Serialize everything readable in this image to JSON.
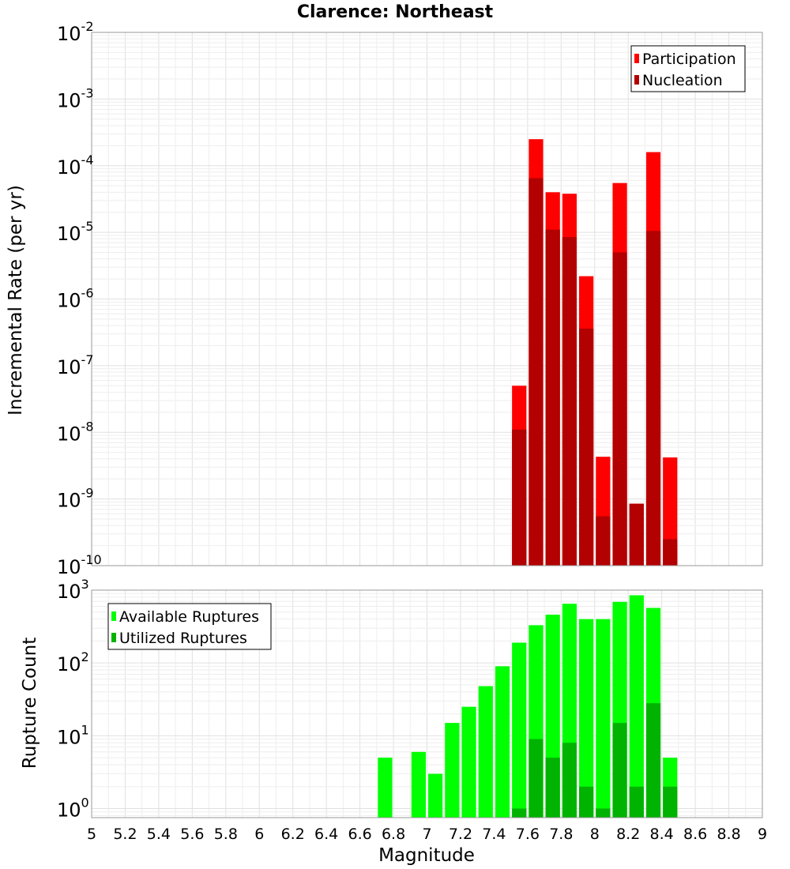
{
  "chart_data": [
    {
      "type": "bar",
      "title": "Clarence: Northeast",
      "xlabel": "",
      "ylabel": "Incremental Rate (per yr)",
      "yscale": "log",
      "xlim": [
        5,
        9
      ],
      "ylim": [
        1e-10,
        0.01
      ],
      "ytick_exponents": [
        -2,
        -3,
        -4,
        -5,
        -6,
        -7,
        -8,
        -9,
        -10
      ],
      "grid": true,
      "legend": "top-right",
      "bar_width": 0.1,
      "x": [
        7.55,
        7.65,
        7.75,
        7.85,
        7.95,
        8.05,
        8.15,
        8.25,
        8.35,
        8.45
      ],
      "series": [
        {
          "name": "Participation",
          "color": "#ff0000",
          "values": [
            5e-08,
            0.00025,
            4e-05,
            3.8e-05,
            2.2e-06,
            4.3e-09,
            5.5e-05,
            8.5e-10,
            0.00016,
            4.2e-09
          ]
        },
        {
          "name": "Nucleation",
          "color": "#b30000",
          "values": [
            1.1e-08,
            6.5e-05,
            1.1e-05,
            8.5e-06,
            3.6e-07,
            5.5e-10,
            5e-06,
            8.5e-10,
            1.05e-05,
            2.5e-10
          ]
        }
      ]
    },
    {
      "type": "bar",
      "title": "",
      "xlabel": "Magnitude",
      "ylabel": "Rupture Count",
      "yscale": "log",
      "xlim": [
        5,
        9
      ],
      "ylim": [
        0.75,
        1000
      ],
      "ytick_exponents": [
        3,
        2,
        1,
        0
      ],
      "xticks": [
        "5",
        "5.2",
        "5.4",
        "5.6",
        "5.8",
        "6",
        "6.2",
        "6.4",
        "6.6",
        "6.8",
        "7",
        "7.2",
        "7.4",
        "7.6",
        "7.8",
        "8",
        "8.2",
        "8.4",
        "8.6",
        "8.8",
        "9"
      ],
      "grid": true,
      "legend": "top-left",
      "bar_width": 0.1,
      "x": [
        6.75,
        6.95,
        7.05,
        7.15,
        7.25,
        7.35,
        7.45,
        7.55,
        7.65,
        7.75,
        7.85,
        7.95,
        8.05,
        8.15,
        8.25,
        8.35,
        8.45
      ],
      "series": [
        {
          "name": "Available Ruptures",
          "color": "#00ff00",
          "values": [
            5,
            6,
            3,
            15,
            25,
            48,
            90,
            190,
            330,
            460,
            650,
            400,
            400,
            690,
            850,
            570,
            5
          ]
        },
        {
          "name": "Utilized Ruptures",
          "color": "#00b300",
          "values": [
            0,
            0,
            0,
            0,
            0,
            0,
            0,
            1,
            9,
            5,
            8,
            2,
            1,
            15,
            2,
            28,
            2
          ]
        }
      ]
    }
  ]
}
